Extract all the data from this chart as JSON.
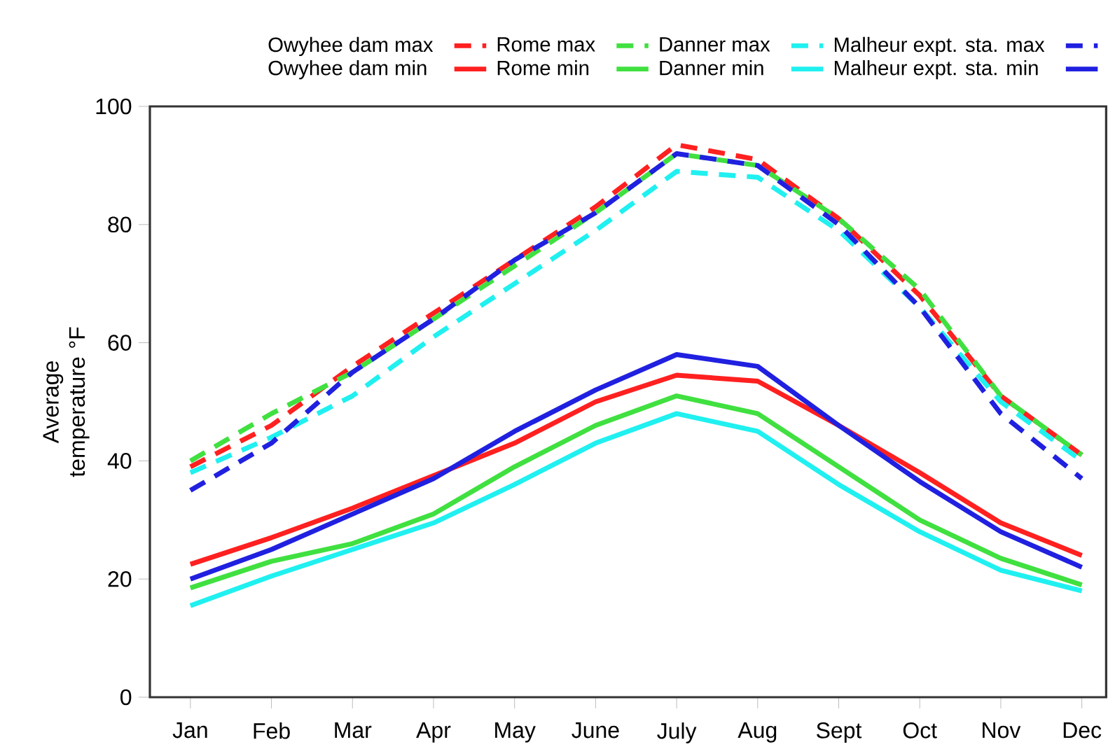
{
  "chart_data": {
    "type": "line",
    "ylabel": "Average temperature °F",
    "categories": [
      "Jan",
      "Feb",
      "Mar",
      "Apr",
      "May",
      "June",
      "July",
      "Aug",
      "Sept",
      "Oct",
      "Nov",
      "Dec"
    ],
    "series": [
      {
        "name": "Owyhee dam max",
        "color": "#ff2020",
        "line_style": "dashed",
        "values": [
          39,
          46,
          56,
          65,
          74,
          83,
          93.5,
          91,
          81,
          68,
          51,
          41
        ]
      },
      {
        "name": "Rome max",
        "color": "#40e040",
        "line_style": "dashed",
        "values": [
          40,
          48,
          55,
          64,
          73,
          82,
          92,
          90,
          81,
          69,
          51,
          41
        ]
      },
      {
        "name": "Danner max",
        "color": "#20f0f0",
        "line_style": "dashed",
        "values": [
          38,
          44,
          51,
          61,
          70,
          79,
          89,
          88,
          79,
          66,
          50,
          40
        ]
      },
      {
        "name": "Malheur expt. sta. max",
        "color": "#2020e0",
        "line_style": "dashed",
        "values": [
          35,
          43,
          55,
          64,
          74,
          82,
          92,
          90,
          80,
          66,
          48,
          37
        ]
      },
      {
        "name": "Owyhee dam min",
        "color": "#ff2020",
        "line_style": "solid",
        "values": [
          22.5,
          27,
          32,
          37.5,
          43,
          50,
          54.5,
          53.5,
          46,
          38,
          29.5,
          24
        ]
      },
      {
        "name": "Rome min",
        "color": "#40e040",
        "line_style": "solid",
        "values": [
          18.5,
          23,
          26,
          31,
          39,
          46,
          51,
          48,
          39,
          30,
          23.5,
          19
        ]
      },
      {
        "name": "Danner min",
        "color": "#20f0f0",
        "line_style": "solid",
        "values": [
          15.5,
          20.5,
          25,
          29.5,
          36,
          43,
          48,
          45,
          36,
          28,
          21.5,
          18
        ]
      },
      {
        "name": "Malheur expt. sta. min",
        "color": "#2020e0",
        "line_style": "solid",
        "values": [
          20,
          25,
          31,
          37,
          45,
          52,
          58,
          56,
          46,
          36.5,
          28,
          22
        ]
      }
    ],
    "ylim": [
      0,
      100
    ],
    "yticks": [
      0,
      20,
      40,
      60,
      80,
      100
    ],
    "grid": false,
    "legend": "top",
    "marker": "none"
  }
}
